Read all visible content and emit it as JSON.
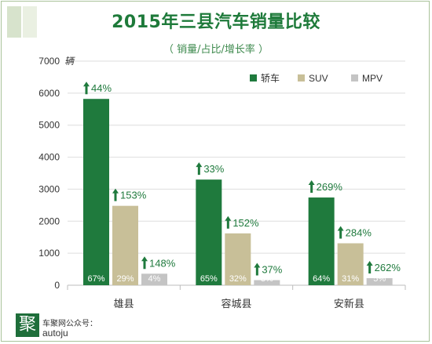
{
  "header": {
    "title": "2015年三县汽车销量比较",
    "subtitle": "（ 销量/占比/增长率 ）"
  },
  "watermark": {
    "logo_char": "聚",
    "line1": "车聚网公众号：",
    "line2": "autoju"
  },
  "colors": {
    "sedan": "#1f7a3d",
    "suv": "#c8bf98",
    "mpv": "#c4c4c4",
    "growth_arrow": "#1f7a3d",
    "grid": "#dedede"
  },
  "chart_data": {
    "type": "bar",
    "title": "2015年三县汽车销量比较",
    "subtitle": "（ 销量/占比/增长率 ）",
    "unit_label": "辆",
    "categories": [
      "雄县",
      "容城县",
      "安新县"
    ],
    "ylim": [
      0,
      7000
    ],
    "yticks": [
      0,
      1000,
      2000,
      3000,
      4000,
      5000,
      6000,
      7000
    ],
    "grid": true,
    "legend_position": "top-right",
    "series": [
      {
        "name": "轿车",
        "values": [
          5820,
          3300,
          2740
        ],
        "share_labels": [
          "67%",
          "65%",
          "64%"
        ],
        "growth_labels": [
          "44%",
          "33%",
          "269%"
        ]
      },
      {
        "name": "SUV",
        "values": [
          2480,
          1620,
          1310
        ],
        "share_labels": [
          "29%",
          "32%",
          "31%"
        ],
        "growth_labels": [
          "153%",
          "152%",
          "284%"
        ]
      },
      {
        "name": "MPV",
        "values": [
          360,
          160,
          220
        ],
        "share_labels": [
          "4%",
          "3%",
          "5%"
        ],
        "growth_labels": [
          "148%",
          "37%",
          "262%"
        ]
      }
    ]
  }
}
